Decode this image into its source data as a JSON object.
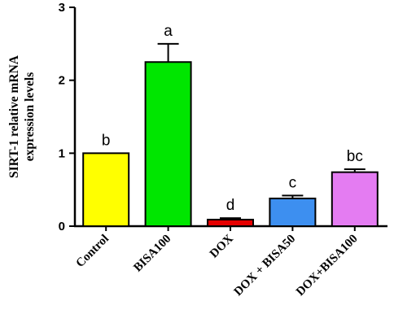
{
  "chart_data": {
    "type": "bar",
    "categories": [
      "Control",
      "BISA100",
      "DOX",
      "DOX + BISA50",
      "DOX+BISA100"
    ],
    "values": [
      1.0,
      2.25,
      0.09,
      0.38,
      0.74
    ],
    "errors": [
      0.0,
      0.25,
      0.02,
      0.04,
      0.04
    ],
    "significance_labels": [
      "b",
      "a",
      "d",
      "c",
      "bc"
    ],
    "colors": [
      "#ffff00",
      "#00e600",
      "#e60000",
      "#3d8ff0",
      "#e47cf2"
    ],
    "ylabel_lines": [
      "SIRT-1 relative mRNA",
      "expression levels"
    ],
    "ylim": [
      0,
      3
    ],
    "yticks": [
      "0",
      "1",
      "2",
      "3"
    ],
    "grid": false,
    "legend": "none"
  }
}
